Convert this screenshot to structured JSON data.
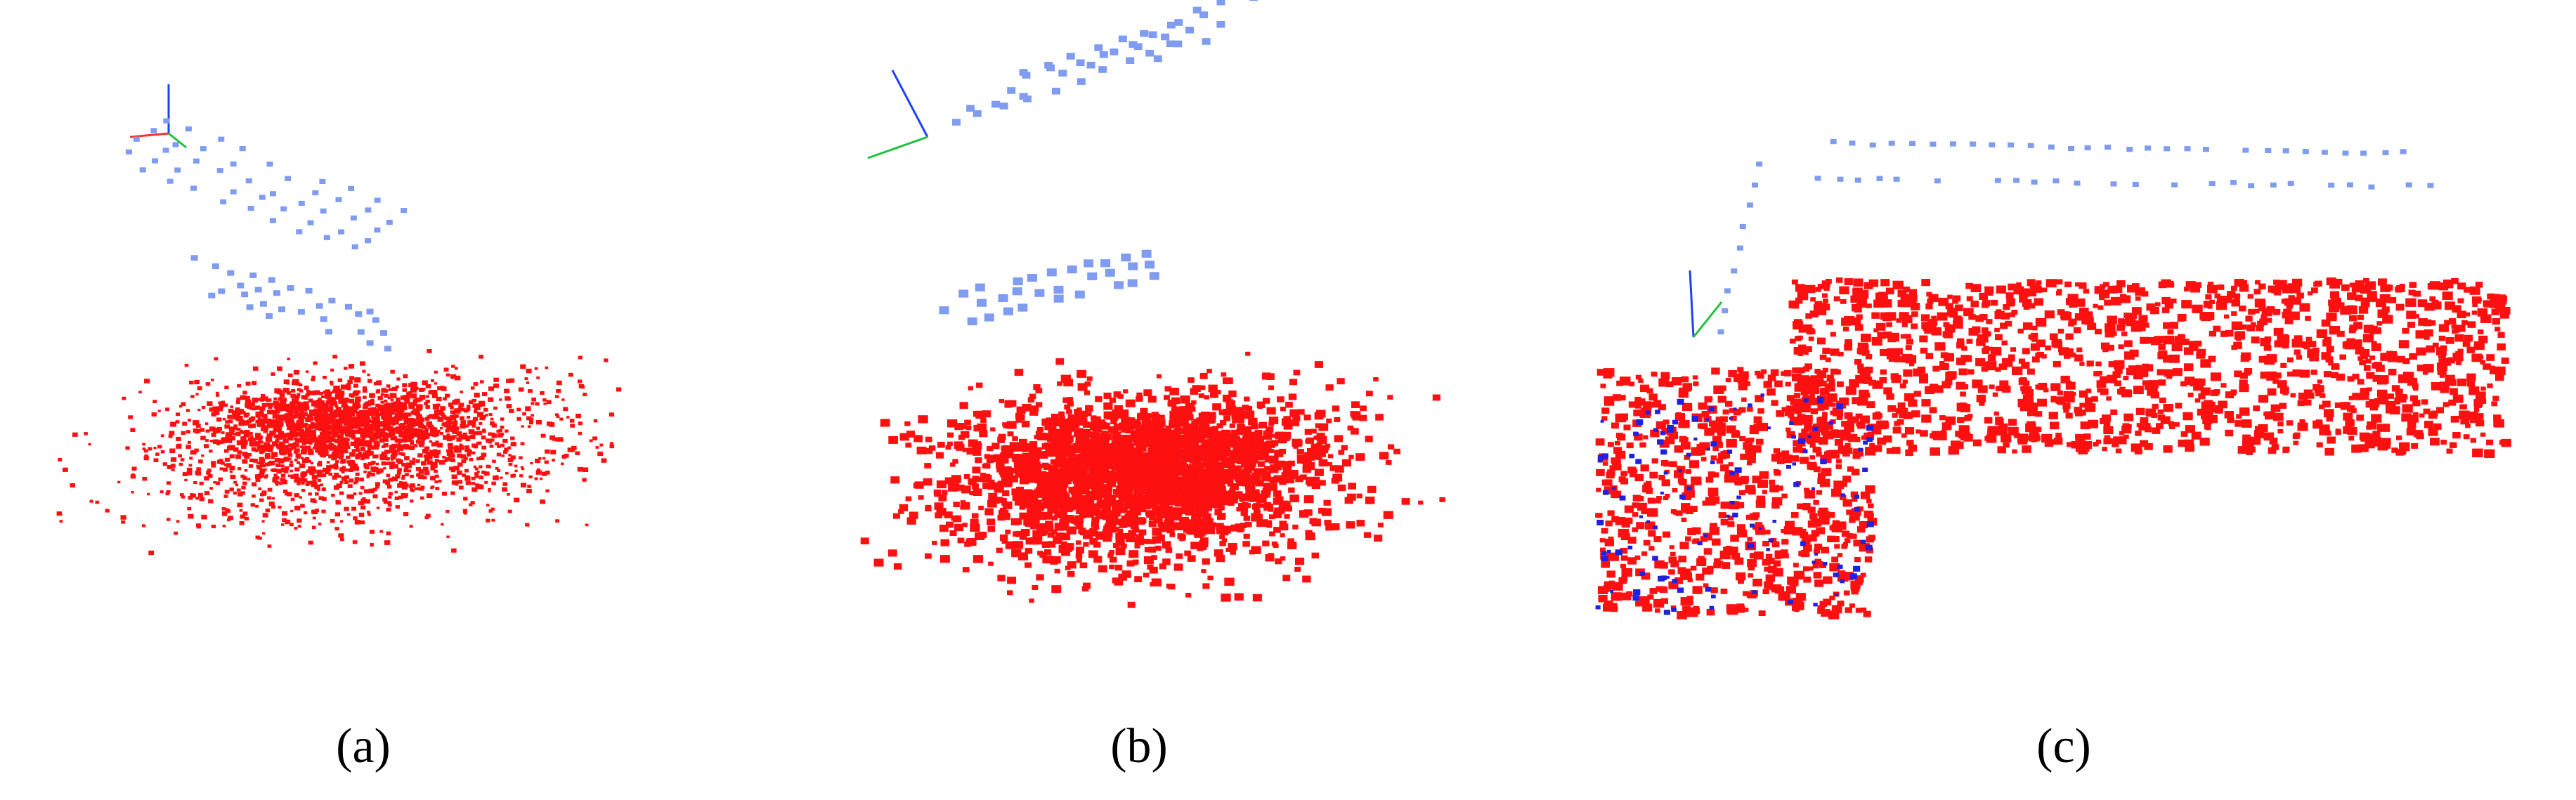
{
  "panels": [
    {
      "caption": "(a)"
    },
    {
      "caption": "(b)"
    },
    {
      "caption": "(c)"
    }
  ]
}
